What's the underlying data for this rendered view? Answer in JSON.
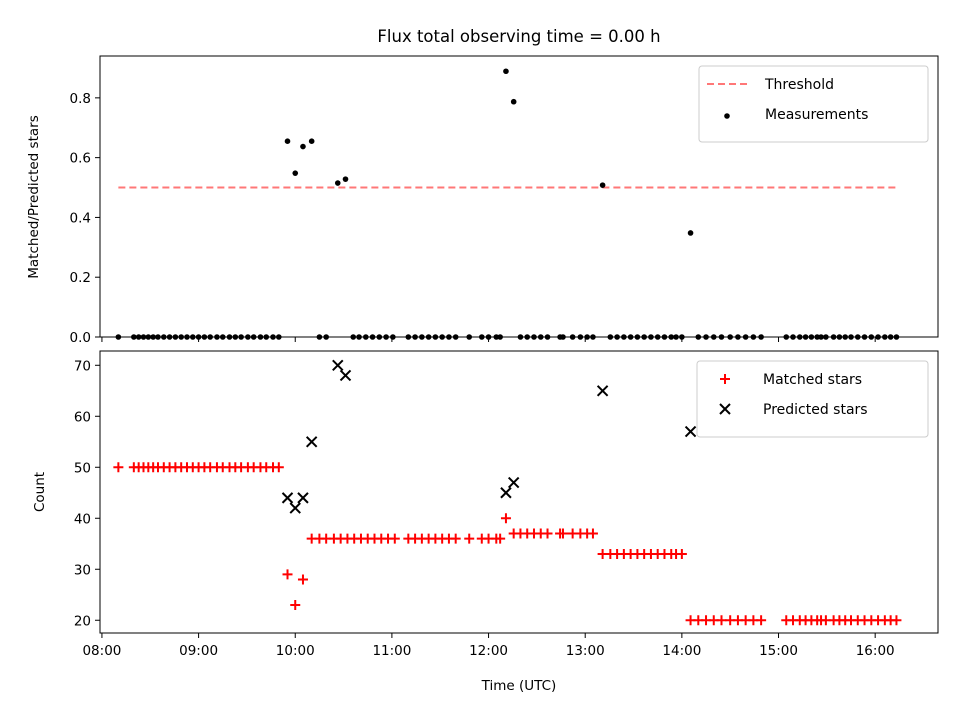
{
  "chart_data": [
    {
      "type": "scatter",
      "title": "Flux total observing time = 0.00 h",
      "xlabel": "",
      "ylabel": "Matched/Predicted stars",
      "xlim": [
        7.98,
        16.65
      ],
      "ylim": [
        0,
        0.94
      ],
      "xticks": [
        8,
        9,
        10,
        11,
        12,
        13,
        14,
        15,
        16
      ],
      "yticks": [
        0.0,
        0.2,
        0.4,
        0.6,
        0.8
      ],
      "ytick_labels": [
        "0.0",
        "0.2",
        "0.4",
        "0.6",
        "0.8"
      ],
      "legend_position": "top-right",
      "threshold": {
        "name": "Threshold",
        "value": 0.5,
        "x_range": [
          8.17,
          16.22
        ],
        "color": "#ff7777"
      },
      "series": [
        {
          "name": "Measurements",
          "color": "#000000",
          "marker": "dot",
          "points": [
            [
              8.17,
              0
            ],
            [
              8.33,
              0
            ],
            [
              8.38,
              0
            ],
            [
              8.43,
              0
            ],
            [
              8.48,
              0
            ],
            [
              8.53,
              0
            ],
            [
              8.58,
              0
            ],
            [
              8.64,
              0
            ],
            [
              8.7,
              0
            ],
            [
              8.76,
              0
            ],
            [
              8.82,
              0
            ],
            [
              8.88,
              0
            ],
            [
              8.94,
              0
            ],
            [
              9.0,
              0
            ],
            [
              9.06,
              0
            ],
            [
              9.12,
              0
            ],
            [
              9.19,
              0
            ],
            [
              9.25,
              0
            ],
            [
              9.32,
              0
            ],
            [
              9.38,
              0
            ],
            [
              9.44,
              0
            ],
            [
              9.51,
              0
            ],
            [
              9.57,
              0
            ],
            [
              9.64,
              0
            ],
            [
              9.7,
              0
            ],
            [
              9.77,
              0
            ],
            [
              9.83,
              0
            ],
            [
              9.92,
              0.655
            ],
            [
              10.0,
              0.548
            ],
            [
              10.08,
              0.637
            ],
            [
              10.17,
              0.655
            ],
            [
              10.25,
              0
            ],
            [
              10.32,
              0
            ],
            [
              10.44,
              0.515
            ],
            [
              10.52,
              0.528
            ],
            [
              10.6,
              0
            ],
            [
              10.66,
              0
            ],
            [
              10.73,
              0
            ],
            [
              10.8,
              0
            ],
            [
              10.87,
              0
            ],
            [
              10.94,
              0
            ],
            [
              11.01,
              0
            ],
            [
              11.17,
              0
            ],
            [
              11.24,
              0
            ],
            [
              11.31,
              0
            ],
            [
              11.38,
              0
            ],
            [
              11.45,
              0
            ],
            [
              11.52,
              0
            ],
            [
              11.59,
              0
            ],
            [
              11.66,
              0
            ],
            [
              11.8,
              0
            ],
            [
              11.93,
              0
            ],
            [
              12.0,
              0
            ],
            [
              12.08,
              0
            ],
            [
              12.12,
              0
            ],
            [
              12.18,
              0.889
            ],
            [
              12.26,
              0.787
            ],
            [
              12.33,
              0
            ],
            [
              12.4,
              0
            ],
            [
              12.47,
              0
            ],
            [
              12.54,
              0
            ],
            [
              12.61,
              0
            ],
            [
              12.74,
              0
            ],
            [
              12.77,
              0
            ],
            [
              12.87,
              0
            ],
            [
              12.95,
              0
            ],
            [
              13.02,
              0
            ],
            [
              13.08,
              0
            ],
            [
              13.18,
              0.508
            ],
            [
              13.26,
              0
            ],
            [
              13.33,
              0
            ],
            [
              13.4,
              0
            ],
            [
              13.47,
              0
            ],
            [
              13.54,
              0
            ],
            [
              13.61,
              0
            ],
            [
              13.68,
              0
            ],
            [
              13.75,
              0
            ],
            [
              13.82,
              0
            ],
            [
              13.89,
              0
            ],
            [
              13.94,
              0
            ],
            [
              14.0,
              0
            ],
            [
              14.09,
              0.348
            ],
            [
              14.17,
              0
            ],
            [
              14.25,
              0
            ],
            [
              14.33,
              0
            ],
            [
              14.41,
              0
            ],
            [
              14.5,
              0
            ],
            [
              14.58,
              0
            ],
            [
              14.66,
              0
            ],
            [
              14.74,
              0
            ],
            [
              14.82,
              0
            ],
            [
              15.08,
              0
            ],
            [
              15.15,
              0
            ],
            [
              15.22,
              0
            ],
            [
              15.28,
              0
            ],
            [
              15.34,
              0
            ],
            [
              15.4,
              0
            ],
            [
              15.44,
              0
            ],
            [
              15.49,
              0
            ],
            [
              15.57,
              0
            ],
            [
              15.63,
              0
            ],
            [
              15.69,
              0
            ],
            [
              15.75,
              0
            ],
            [
              15.82,
              0
            ],
            [
              15.89,
              0
            ],
            [
              15.96,
              0
            ],
            [
              16.03,
              0
            ],
            [
              16.1,
              0
            ],
            [
              16.16,
              0
            ],
            [
              16.22,
              0
            ]
          ]
        }
      ]
    },
    {
      "type": "scatter",
      "title": "",
      "xlabel": "Time (UTC)",
      "ylabel": "Count",
      "xlim": [
        7.98,
        16.65
      ],
      "ylim": [
        17.5,
        72.8
      ],
      "xticks": [
        8,
        9,
        10,
        11,
        12,
        13,
        14,
        15,
        16
      ],
      "xtick_labels": [
        "08:00",
        "09:00",
        "10:00",
        "11:00",
        "12:00",
        "13:00",
        "14:00",
        "15:00",
        "16:00"
      ],
      "yticks": [
        20,
        30,
        40,
        50,
        60,
        70
      ],
      "ytick_labels": [
        "20",
        "30",
        "40",
        "50",
        "60",
        "70"
      ],
      "legend_position": "top-right",
      "series": [
        {
          "name": "Matched stars",
          "color": "#ff0000",
          "marker": "plus",
          "points": [
            [
              8.17,
              50
            ],
            [
              8.33,
              50
            ],
            [
              8.38,
              50
            ],
            [
              8.43,
              50
            ],
            [
              8.48,
              50
            ],
            [
              8.53,
              50
            ],
            [
              8.58,
              50
            ],
            [
              8.64,
              50
            ],
            [
              8.7,
              50
            ],
            [
              8.76,
              50
            ],
            [
              8.82,
              50
            ],
            [
              8.88,
              50
            ],
            [
              8.94,
              50
            ],
            [
              9.0,
              50
            ],
            [
              9.06,
              50
            ],
            [
              9.12,
              50
            ],
            [
              9.19,
              50
            ],
            [
              9.25,
              50
            ],
            [
              9.32,
              50
            ],
            [
              9.38,
              50
            ],
            [
              9.44,
              50
            ],
            [
              9.51,
              50
            ],
            [
              9.57,
              50
            ],
            [
              9.64,
              50
            ],
            [
              9.7,
              50
            ],
            [
              9.77,
              50
            ],
            [
              9.83,
              50
            ],
            [
              9.92,
              29
            ],
            [
              10.0,
              23
            ],
            [
              10.08,
              28
            ],
            [
              10.17,
              36
            ],
            [
              10.25,
              36
            ],
            [
              10.32,
              36
            ],
            [
              10.4,
              36
            ],
            [
              10.47,
              36
            ],
            [
              10.54,
              36
            ],
            [
              10.61,
              36
            ],
            [
              10.68,
              36
            ],
            [
              10.75,
              36
            ],
            [
              10.82,
              36
            ],
            [
              10.89,
              36
            ],
            [
              10.96,
              36
            ],
            [
              11.03,
              36
            ],
            [
              11.17,
              36
            ],
            [
              11.24,
              36
            ],
            [
              11.31,
              36
            ],
            [
              11.38,
              36
            ],
            [
              11.45,
              36
            ],
            [
              11.52,
              36
            ],
            [
              11.59,
              36
            ],
            [
              11.66,
              36
            ],
            [
              11.8,
              36
            ],
            [
              11.93,
              36
            ],
            [
              12.0,
              36
            ],
            [
              12.08,
              36
            ],
            [
              12.12,
              36
            ],
            [
              12.18,
              40
            ],
            [
              12.26,
              37
            ],
            [
              12.33,
              37
            ],
            [
              12.4,
              37
            ],
            [
              12.47,
              37
            ],
            [
              12.54,
              37
            ],
            [
              12.61,
              37
            ],
            [
              12.74,
              37
            ],
            [
              12.77,
              37
            ],
            [
              12.87,
              37
            ],
            [
              12.95,
              37
            ],
            [
              13.02,
              37
            ],
            [
              13.08,
              37
            ],
            [
              13.18,
              33
            ],
            [
              13.26,
              33
            ],
            [
              13.33,
              33
            ],
            [
              13.4,
              33
            ],
            [
              13.47,
              33
            ],
            [
              13.54,
              33
            ],
            [
              13.61,
              33
            ],
            [
              13.68,
              33
            ],
            [
              13.75,
              33
            ],
            [
              13.82,
              33
            ],
            [
              13.89,
              33
            ],
            [
              13.94,
              33
            ],
            [
              14.0,
              33
            ],
            [
              14.09,
              20
            ],
            [
              14.17,
              20
            ],
            [
              14.25,
              20
            ],
            [
              14.33,
              20
            ],
            [
              14.41,
              20
            ],
            [
              14.5,
              20
            ],
            [
              14.58,
              20
            ],
            [
              14.66,
              20
            ],
            [
              14.74,
              20
            ],
            [
              14.82,
              20
            ],
            [
              15.08,
              20
            ],
            [
              15.15,
              20
            ],
            [
              15.22,
              20
            ],
            [
              15.28,
              20
            ],
            [
              15.34,
              20
            ],
            [
              15.4,
              20
            ],
            [
              15.44,
              20
            ],
            [
              15.49,
              20
            ],
            [
              15.57,
              20
            ],
            [
              15.63,
              20
            ],
            [
              15.69,
              20
            ],
            [
              15.75,
              20
            ],
            [
              15.82,
              20
            ],
            [
              15.89,
              20
            ],
            [
              15.96,
              20
            ],
            [
              16.03,
              20
            ],
            [
              16.1,
              20
            ],
            [
              16.16,
              20
            ],
            [
              16.22,
              20
            ]
          ]
        },
        {
          "name": "Predicted stars",
          "color": "#000000",
          "marker": "x",
          "points": [
            [
              9.92,
              44
            ],
            [
              10.0,
              42
            ],
            [
              10.08,
              44
            ],
            [
              10.17,
              55
            ],
            [
              10.44,
              70
            ],
            [
              10.52,
              68
            ],
            [
              12.18,
              45
            ],
            [
              12.26,
              47
            ],
            [
              13.18,
              65
            ],
            [
              14.09,
              57
            ]
          ]
        }
      ]
    }
  ]
}
